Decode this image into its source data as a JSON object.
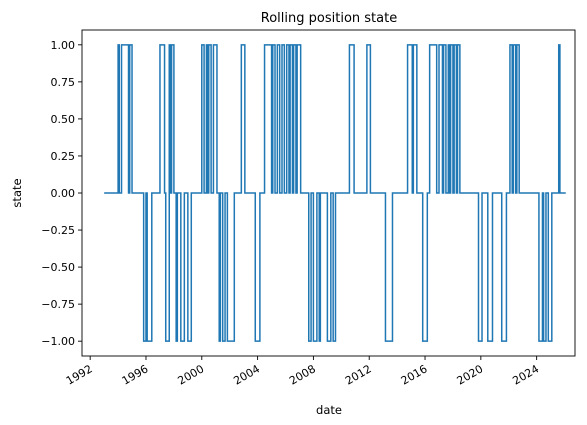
{
  "chart_data": {
    "type": "line",
    "title": "Rolling position state",
    "xlabel": "date",
    "ylabel": "state",
    "xlim": [
      "1991-06-01",
      "2026-10-01"
    ],
    "ylim": [
      -1.1,
      1.1
    ],
    "grid": false,
    "x_ticks": [
      "1992",
      "1996",
      "2000",
      "2004",
      "2008",
      "2012",
      "2016",
      "2020",
      "2024"
    ],
    "y_ticks": [
      "1.00",
      "0.75",
      "0.50",
      "0.25",
      "0.00",
      "−0.25",
      "−0.50",
      "−0.75",
      "−1.00"
    ],
    "series": [
      {
        "color": "#1f77b4",
        "step": "post",
        "points": [
          [
            "1993-01-01",
            0
          ],
          [
            "1994-01-01",
            1
          ],
          [
            "1994-02-01",
            0
          ],
          [
            "1994-04-01",
            1
          ],
          [
            "1994-10-01",
            0
          ],
          [
            "1994-11-01",
            1
          ],
          [
            "1995-01-01",
            0
          ],
          [
            "1995-11-01",
            -1
          ],
          [
            "1996-01-01",
            0
          ],
          [
            "1996-02-01",
            -1
          ],
          [
            "1996-06-01",
            0
          ],
          [
            "1997-01-01",
            1
          ],
          [
            "1997-05-01",
            0
          ],
          [
            "1997-06-01",
            -1
          ],
          [
            "1997-09-01",
            1
          ],
          [
            "1997-10-01",
            0
          ],
          [
            "1997-11-01",
            1
          ],
          [
            "1998-01-01",
            0
          ],
          [
            "1998-03-01",
            -1
          ],
          [
            "1998-04-01",
            0
          ],
          [
            "1998-07-01",
            -1
          ],
          [
            "1998-10-01",
            0
          ],
          [
            "1999-01-01",
            -1
          ],
          [
            "1999-04-01",
            0
          ],
          [
            "2000-01-01",
            1
          ],
          [
            "2000-03-01",
            0
          ],
          [
            "2000-05-01",
            1
          ],
          [
            "2000-06-01",
            0
          ],
          [
            "2000-07-01",
            1
          ],
          [
            "2000-09-01",
            0
          ],
          [
            "2000-11-01",
            1
          ],
          [
            "2001-02-01",
            0
          ],
          [
            "2001-04-01",
            -1
          ],
          [
            "2001-05-01",
            0
          ],
          [
            "2001-07-01",
            -1
          ],
          [
            "2001-09-01",
            0
          ],
          [
            "2001-11-01",
            -1
          ],
          [
            "2002-05-01",
            0
          ],
          [
            "2002-11-01",
            1
          ],
          [
            "2003-02-01",
            0
          ],
          [
            "2003-11-01",
            -1
          ],
          [
            "2004-03-01",
            0
          ],
          [
            "2004-07-01",
            1
          ],
          [
            "2005-01-01",
            0
          ],
          [
            "2005-02-01",
            1
          ],
          [
            "2005-04-01",
            0
          ],
          [
            "2005-06-01",
            1
          ],
          [
            "2005-08-01",
            0
          ],
          [
            "2005-10-01",
            1
          ],
          [
            "2005-12-01",
            0
          ],
          [
            "2006-02-01",
            1
          ],
          [
            "2006-04-01",
            0
          ],
          [
            "2006-05-01",
            1
          ],
          [
            "2006-07-01",
            0
          ],
          [
            "2006-08-01",
            1
          ],
          [
            "2006-10-01",
            0
          ],
          [
            "2006-11-01",
            1
          ],
          [
            "2007-02-01",
            0
          ],
          [
            "2007-09-01",
            -1
          ],
          [
            "2007-11-01",
            0
          ],
          [
            "2008-01-01",
            -1
          ],
          [
            "2008-04-01",
            0
          ],
          [
            "2008-06-01",
            -1
          ],
          [
            "2008-07-01",
            0
          ],
          [
            "2009-01-01",
            -1
          ],
          [
            "2009-04-01",
            0
          ],
          [
            "2009-06-01",
            -1
          ],
          [
            "2009-08-01",
            0
          ],
          [
            "2010-08-01",
            1
          ],
          [
            "2010-12-01",
            0
          ],
          [
            "2011-11-01",
            1
          ],
          [
            "2012-02-01",
            0
          ],
          [
            "2013-03-01",
            -1
          ],
          [
            "2013-09-01",
            0
          ],
          [
            "2014-10-01",
            1
          ],
          [
            "2015-02-01",
            0
          ],
          [
            "2015-03-01",
            1
          ],
          [
            "2015-06-01",
            0
          ],
          [
            "2015-11-01",
            -1
          ],
          [
            "2016-03-01",
            0
          ],
          [
            "2016-05-01",
            1
          ],
          [
            "2016-11-01",
            0
          ],
          [
            "2017-01-01",
            1
          ],
          [
            "2017-04-01",
            0
          ],
          [
            "2017-05-01",
            1
          ],
          [
            "2017-07-01",
            0
          ],
          [
            "2017-09-01",
            1
          ],
          [
            "2017-10-01",
            0
          ],
          [
            "2017-11-01",
            1
          ],
          [
            "2018-01-01",
            0
          ],
          [
            "2018-02-01",
            1
          ],
          [
            "2018-04-01",
            0
          ],
          [
            "2018-05-01",
            1
          ],
          [
            "2018-07-01",
            0
          ],
          [
            "2019-11-01",
            -1
          ],
          [
            "2020-02-01",
            0
          ],
          [
            "2020-07-01",
            -1
          ],
          [
            "2020-11-01",
            0
          ],
          [
            "2021-07-01",
            -1
          ],
          [
            "2021-11-01",
            0
          ],
          [
            "2022-02-01",
            1
          ],
          [
            "2022-04-01",
            0
          ],
          [
            "2022-05-01",
            1
          ],
          [
            "2022-07-01",
            0
          ],
          [
            "2022-08-01",
            1
          ],
          [
            "2022-10-01",
            0
          ],
          [
            "2024-03-01",
            -1
          ],
          [
            "2024-06-01",
            0
          ],
          [
            "2024-07-01",
            -1
          ],
          [
            "2024-09-01",
            0
          ],
          [
            "2024-11-01",
            -1
          ],
          [
            "2025-02-01",
            0
          ],
          [
            "2025-08-01",
            1
          ],
          [
            "2025-09-01",
            0
          ],
          [
            "2026-02-01",
            0
          ]
        ]
      }
    ]
  }
}
